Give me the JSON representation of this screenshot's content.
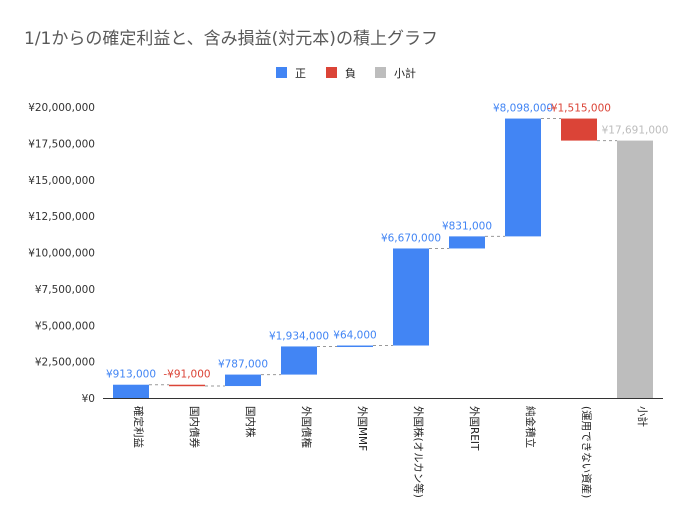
{
  "chart_data": {
    "type": "waterfall",
    "title": "1/1からの確定利益と、含み損益(対元本)の積上グラフ",
    "legend": [
      {
        "name": "正",
        "color": "#4285f4"
      },
      {
        "name": "負",
        "color": "#db4437"
      },
      {
        "name": "小計",
        "color": "#bdbdbd"
      }
    ],
    "categories": [
      "確定利益",
      "国内債券",
      "国内株",
      "外国債権",
      "外国MMF",
      "外国株(オルカン等)",
      "外国REIT",
      "純金積立",
      "(運用できない資産)",
      "小計"
    ],
    "values": [
      913000,
      -91000,
      787000,
      1934000,
      64000,
      6670000,
      831000,
      8098000,
      -1515000,
      17691000
    ],
    "data_labels": [
      "¥913,000",
      "-¥91,000",
      "¥787,000",
      "¥1,934,000",
      "¥64,000",
      "¥6,670,000",
      "¥831,000",
      "¥8,098,000",
      "-¥1,515,000",
      "¥17,691,000"
    ],
    "is_subtotal": [
      false,
      false,
      false,
      false,
      false,
      false,
      false,
      false,
      false,
      true
    ],
    "y_ticks": [
      0,
      2500000,
      5000000,
      7500000,
      10000000,
      12500000,
      15000000,
      17500000,
      20000000
    ],
    "y_tick_labels": [
      "¥0",
      "¥2,500,000",
      "¥5,000,000",
      "¥7,500,000",
      "¥10,000,000",
      "¥12,500,000",
      "¥15,000,000",
      "¥17,500,000",
      "¥20,000,000"
    ],
    "ylim": [
      0,
      20000000
    ],
    "xlabel": "",
    "ylabel": "",
    "colors": {
      "positive": "#4285f4",
      "negative": "#db4437",
      "subtotal": "#bdbdbd",
      "axis": "#333333",
      "connector": "#999999"
    }
  }
}
